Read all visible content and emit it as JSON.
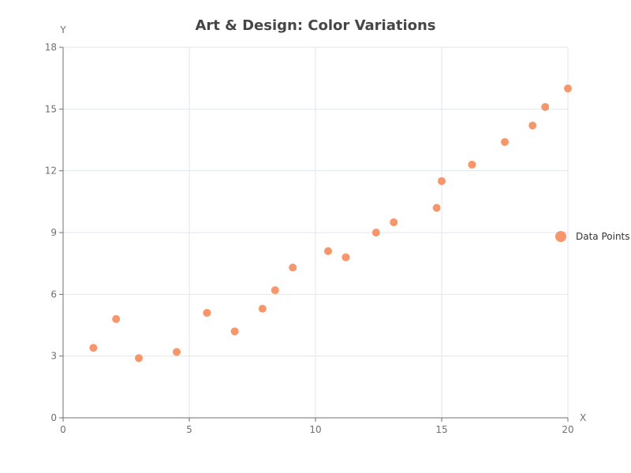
{
  "chart_data": {
    "type": "scatter",
    "title": "Art & Design: Color Variations",
    "xlabel": "X",
    "ylabel": "Y",
    "xlim": [
      0,
      20
    ],
    "ylim": [
      0,
      18
    ],
    "x_ticks": [
      0,
      5,
      10,
      15,
      20
    ],
    "y_ticks": [
      0,
      3,
      6,
      9,
      12,
      15,
      18
    ],
    "x_tick_labels": [
      "0",
      "5",
      "10",
      "15",
      "20"
    ],
    "y_tick_labels": [
      "0",
      "3",
      "6",
      "9",
      "12",
      "15",
      "18"
    ],
    "grid": true,
    "legend_position": "right",
    "series": [
      {
        "name": "Data Points",
        "color": "#f7956b",
        "x": [
          1.2,
          2.1,
          3.0,
          4.5,
          5.7,
          6.8,
          7.9,
          8.4,
          9.1,
          10.5,
          11.2,
          12.4,
          13.1,
          14.8,
          15.0,
          16.2,
          17.5,
          18.6,
          19.1,
          20.0
        ],
        "y": [
          3.4,
          4.8,
          2.9,
          3.2,
          5.1,
          4.2,
          5.3,
          6.2,
          7.3,
          8.1,
          7.8,
          9.0,
          9.5,
          10.2,
          11.5,
          12.3,
          13.4,
          14.2,
          15.1,
          16.0
        ]
      }
    ]
  }
}
